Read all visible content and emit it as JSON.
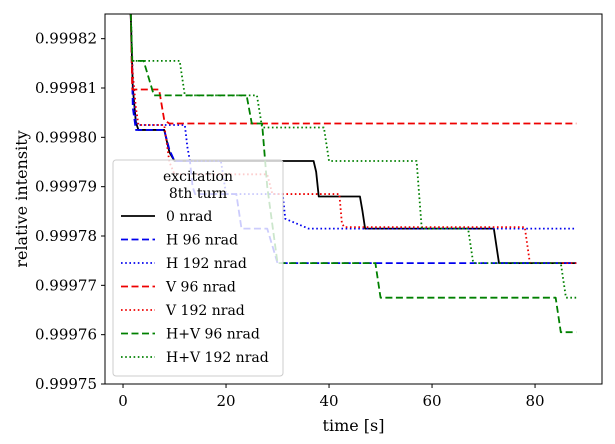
{
  "chart_data": {
    "type": "line",
    "title": "",
    "xlabel": "time [s]",
    "ylabel": "relative intensity",
    "xlim": [
      -3.5,
      93
    ],
    "ylim": [
      0.99975,
      0.999825
    ],
    "x_ticks": [
      {
        "value": 0,
        "label": "0"
      },
      {
        "value": 20,
        "label": "20"
      },
      {
        "value": 40,
        "label": "40"
      },
      {
        "value": 60,
        "label": "60"
      },
      {
        "value": 80,
        "label": "80"
      }
    ],
    "y_ticks": [
      {
        "value": 0.99975,
        "label": "0.99975"
      },
      {
        "value": 0.99976,
        "label": "0.99976"
      },
      {
        "value": 0.99977,
        "label": "0.99977"
      },
      {
        "value": 0.99978,
        "label": "0.99978"
      },
      {
        "value": 0.99979,
        "label": "0.99979"
      },
      {
        "value": 0.9998,
        "label": "0.99980"
      },
      {
        "value": 0.99981,
        "label": "0.99981"
      },
      {
        "value": 0.99982,
        "label": "0.99982"
      }
    ],
    "legend_title": [
      "excitation",
      "8th turn"
    ],
    "legend_position": "lower-left",
    "series": [
      {
        "name": "0 nrad",
        "color": "#000000",
        "dash": "solid",
        "points": [
          [
            1.5,
            0.999825
          ],
          [
            1.9,
            0.99981
          ],
          [
            2.5,
            0.999803
          ],
          [
            3,
            0.9998015
          ],
          [
            8,
            0.9998015
          ],
          [
            9,
            0.999797
          ],
          [
            10,
            0.9997952
          ],
          [
            37,
            0.9997952
          ],
          [
            37.5,
            0.999793
          ],
          [
            38,
            0.999788
          ],
          [
            46,
            0.999788
          ],
          [
            46.5,
            0.999785
          ],
          [
            47,
            0.9997815
          ],
          [
            72,
            0.9997815
          ],
          [
            73,
            0.9997745
          ],
          [
            88,
            0.9997745
          ]
        ]
      },
      {
        "name": "H 96 nrad",
        "color": "#0000ee",
        "dash": "dashed",
        "points": [
          [
            1.5,
            0.999825
          ],
          [
            1.9,
            0.999806
          ],
          [
            2.5,
            0.9998015
          ],
          [
            8,
            0.9998015
          ],
          [
            9,
            0.9997975
          ],
          [
            10,
            0.9997952
          ],
          [
            13,
            0.9997952
          ],
          [
            13.5,
            0.99979
          ],
          [
            14,
            0.9997885
          ],
          [
            22,
            0.9997885
          ],
          [
            23,
            0.9997815
          ],
          [
            28,
            0.9997815
          ],
          [
            30,
            0.9997745
          ],
          [
            88,
            0.9997745
          ]
        ]
      },
      {
        "name": "H 192 nrad",
        "color": "#0000ee",
        "dash": "dotted",
        "points": [
          [
            1.5,
            0.999825
          ],
          [
            1.9,
            0.999812
          ],
          [
            2.5,
            0.999803
          ],
          [
            3,
            0.9998025
          ],
          [
            12,
            0.9998025
          ],
          [
            12.5,
            0.999798
          ],
          [
            13,
            0.9997952
          ],
          [
            19,
            0.9997952
          ],
          [
            20,
            0.9997885
          ],
          [
            31,
            0.9997885
          ],
          [
            31.5,
            0.9997835
          ],
          [
            36,
            0.9997815
          ],
          [
            88,
            0.9997815
          ]
        ]
      },
      {
        "name": "V 96 nrad",
        "color": "#ee0000",
        "dash": "dashed",
        "points": [
          [
            1.5,
            0.999825
          ],
          [
            1.8,
            0.9998097
          ],
          [
            7,
            0.9998097
          ],
          [
            8,
            0.9998035
          ],
          [
            9,
            0.9998028
          ],
          [
            88,
            0.9998028
          ]
        ]
      },
      {
        "name": "V 192 nrad",
        "color": "#ee0000",
        "dash": "dotted",
        "points": [
          [
            1.5,
            0.999825
          ],
          [
            1.8,
            0.999814
          ],
          [
            2.5,
            0.999806
          ],
          [
            3,
            0.9998025
          ],
          [
            8,
            0.9998025
          ],
          [
            9,
            0.999795
          ],
          [
            10,
            0.9997925
          ],
          [
            28,
            0.9997925
          ],
          [
            29,
            0.9997885
          ],
          [
            42,
            0.9997885
          ],
          [
            42.5,
            0.9997825
          ],
          [
            43,
            0.9997818
          ],
          [
            78,
            0.9997818
          ],
          [
            79,
            0.9997745
          ],
          [
            88,
            0.9997745
          ]
        ]
      },
      {
        "name": "H+V 96 nrad",
        "color": "#008000",
        "dash": "dashed",
        "points": [
          [
            1.5,
            0.999825
          ],
          [
            1.8,
            0.9998155
          ],
          [
            4,
            0.9998155
          ],
          [
            6,
            0.9998085
          ],
          [
            24,
            0.9998085
          ],
          [
            25,
            0.9998028
          ],
          [
            27,
            0.9998028
          ],
          [
            28,
            0.99979
          ],
          [
            30,
            0.9997745
          ],
          [
            49,
            0.9997745
          ],
          [
            50,
            0.9997675
          ],
          [
            84,
            0.9997675
          ],
          [
            85,
            0.9997605
          ],
          [
            88,
            0.9997605
          ]
        ]
      },
      {
        "name": "H+V 192 nrad",
        "color": "#008000",
        "dash": "dotted",
        "points": [
          [
            1.5,
            0.999825
          ],
          [
            1.8,
            0.9998155
          ],
          [
            11,
            0.9998155
          ],
          [
            12,
            0.9998085
          ],
          [
            26,
            0.9998085
          ],
          [
            27,
            0.999802
          ],
          [
            39,
            0.999802
          ],
          [
            40,
            0.9997952
          ],
          [
            57,
            0.9997952
          ],
          [
            58,
            0.9997815
          ],
          [
            67,
            0.9997815
          ],
          [
            68,
            0.9997745
          ],
          [
            85,
            0.9997745
          ],
          [
            86,
            0.9997675
          ],
          [
            88,
            0.9997675
          ]
        ]
      }
    ]
  }
}
